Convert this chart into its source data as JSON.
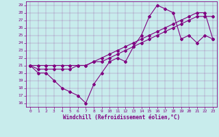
{
  "xlabel": "Windchill (Refroidissement éolien,°C)",
  "bg_color": "#c8ecec",
  "line_color": "#800080",
  "grid_color": "#9090c0",
  "xlim_min": -0.5,
  "xlim_max": 23.5,
  "ylim_min": 15.5,
  "ylim_max": 29.5,
  "xticks": [
    0,
    1,
    2,
    3,
    4,
    5,
    6,
    7,
    8,
    9,
    10,
    11,
    12,
    13,
    14,
    15,
    16,
    17,
    18,
    19,
    20,
    21,
    22,
    23
  ],
  "yticks": [
    16,
    17,
    18,
    19,
    20,
    21,
    22,
    23,
    24,
    25,
    26,
    27,
    28,
    29
  ],
  "line1_x": [
    0,
    1,
    2,
    3,
    4,
    5,
    6,
    7,
    8,
    9,
    10,
    11,
    12,
    13,
    14,
    15,
    16,
    17,
    18,
    19,
    20,
    21,
    22,
    23
  ],
  "line1_y": [
    21,
    20,
    20,
    19,
    18,
    17.5,
    17,
    16,
    18.5,
    20,
    21.5,
    22,
    21.5,
    23.5,
    25,
    27.5,
    29,
    28.5,
    28,
    24.5,
    25,
    24,
    25,
    24.5
  ],
  "line2_x": [
    0,
    1,
    2,
    3,
    4,
    5,
    6,
    7,
    8,
    9,
    10,
    11,
    12,
    13,
    14,
    15,
    16,
    17,
    18,
    19,
    20,
    21,
    22,
    23
  ],
  "line2_y": [
    21,
    20.5,
    20.5,
    20.5,
    20.5,
    20.5,
    21,
    21,
    21.5,
    21.5,
    22,
    22.5,
    23,
    23.5,
    24,
    24.5,
    25,
    25.5,
    26,
    26.5,
    27,
    27.5,
    27.5,
    27.5
  ],
  "line3_x": [
    0,
    1,
    2,
    3,
    4,
    5,
    6,
    7,
    8,
    9,
    10,
    11,
    12,
    13,
    14,
    15,
    16,
    17,
    18,
    19,
    20,
    21,
    22,
    23
  ],
  "line3_y": [
    21,
    21,
    21,
    21,
    21,
    21,
    21,
    21,
    21.5,
    22,
    22.5,
    23,
    23.5,
    24,
    24.5,
    25,
    25.5,
    26,
    26.5,
    27,
    27.5,
    28,
    28,
    24.5
  ],
  "tick_fontsize": 4.5,
  "xlabel_fontsize": 5.5,
  "linewidth": 0.8,
  "markersize": 2.0
}
